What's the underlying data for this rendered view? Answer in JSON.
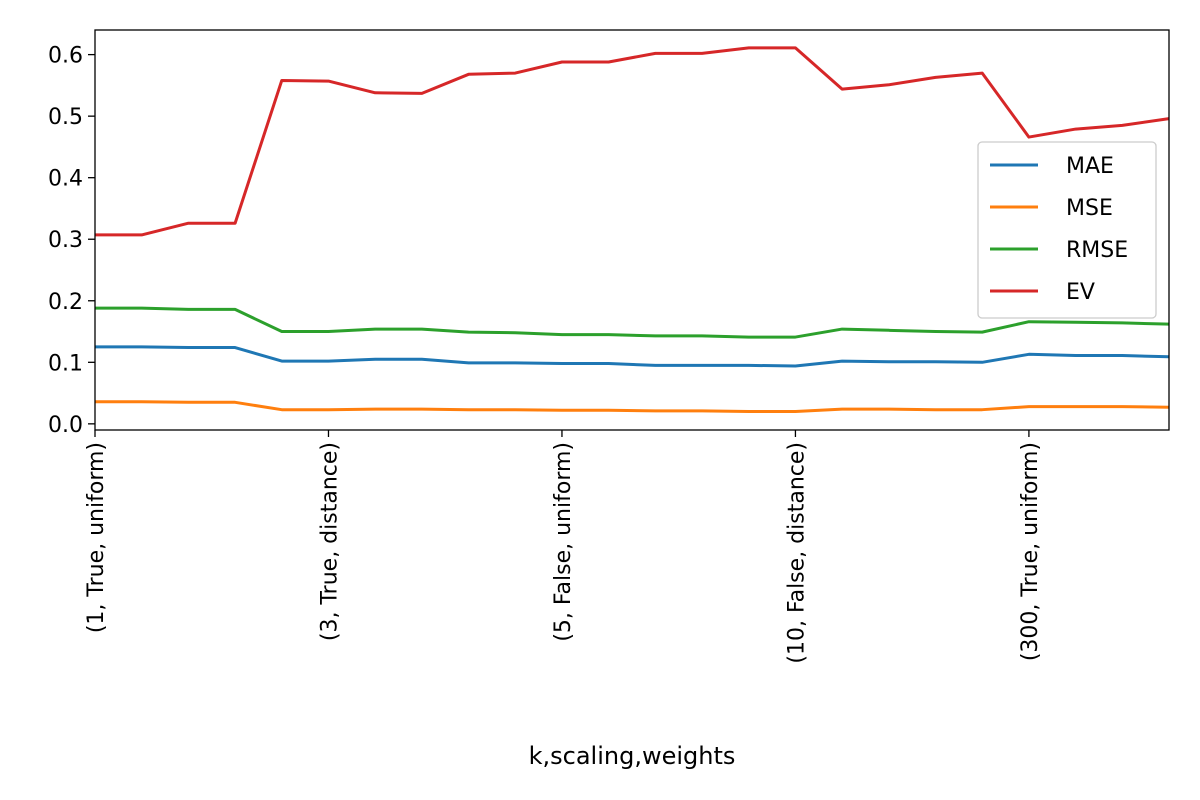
{
  "chart_data": {
    "type": "line",
    "xlabel": "k,scaling,weights",
    "ylabel": "",
    "x": [
      0,
      1,
      2,
      3,
      4,
      5,
      6,
      7,
      8,
      9,
      10,
      11,
      12,
      13,
      14,
      15,
      16,
      17,
      18,
      19,
      20,
      21,
      22,
      23
    ],
    "xlim": [
      0,
      23
    ],
    "ylim": [
      -0.01,
      0.64
    ],
    "xticks": [
      {
        "x": 0,
        "label": "(1, True, uniform)"
      },
      {
        "x": 5,
        "label": "(3, True, distance)"
      },
      {
        "x": 10,
        "label": "(5, False, uniform)"
      },
      {
        "x": 15,
        "label": "(10, False, distance)"
      },
      {
        "x": 20,
        "label": "(300, True, uniform)"
      }
    ],
    "yticks": [
      {
        "y": 0.0,
        "label": "0.0"
      },
      {
        "y": 0.1,
        "label": "0.1"
      },
      {
        "y": 0.2,
        "label": "0.2"
      },
      {
        "y": 0.3,
        "label": "0.3"
      },
      {
        "y": 0.4,
        "label": "0.4"
      },
      {
        "y": 0.5,
        "label": "0.5"
      },
      {
        "y": 0.6,
        "label": "0.6"
      }
    ],
    "grid": false,
    "legend_position": "right",
    "series": [
      {
        "name": "MAE",
        "color": "#1f77b4",
        "values": [
          0.125,
          0.125,
          0.124,
          0.124,
          0.102,
          0.102,
          0.105,
          0.105,
          0.099,
          0.099,
          0.098,
          0.098,
          0.095,
          0.095,
          0.095,
          0.094,
          0.102,
          0.101,
          0.101,
          0.1,
          0.113,
          0.111,
          0.111,
          0.109
        ]
      },
      {
        "name": "MSE",
        "color": "#ff7f0e",
        "values": [
          0.036,
          0.036,
          0.035,
          0.035,
          0.023,
          0.023,
          0.024,
          0.024,
          0.023,
          0.023,
          0.022,
          0.022,
          0.021,
          0.021,
          0.02,
          0.02,
          0.024,
          0.024,
          0.023,
          0.023,
          0.028,
          0.028,
          0.028,
          0.027
        ]
      },
      {
        "name": "RMSE",
        "color": "#2ca02c",
        "values": [
          0.188,
          0.188,
          0.186,
          0.186,
          0.15,
          0.15,
          0.154,
          0.154,
          0.149,
          0.148,
          0.145,
          0.145,
          0.143,
          0.143,
          0.141,
          0.141,
          0.154,
          0.152,
          0.15,
          0.149,
          0.166,
          0.165,
          0.164,
          0.162
        ]
      },
      {
        "name": "EV",
        "color": "#d62728",
        "values": [
          0.307,
          0.307,
          0.326,
          0.326,
          0.558,
          0.557,
          0.538,
          0.537,
          0.568,
          0.57,
          0.588,
          0.588,
          0.602,
          0.602,
          0.611,
          0.611,
          0.544,
          0.551,
          0.563,
          0.57,
          0.466,
          0.479,
          0.485,
          0.496
        ]
      }
    ]
  }
}
